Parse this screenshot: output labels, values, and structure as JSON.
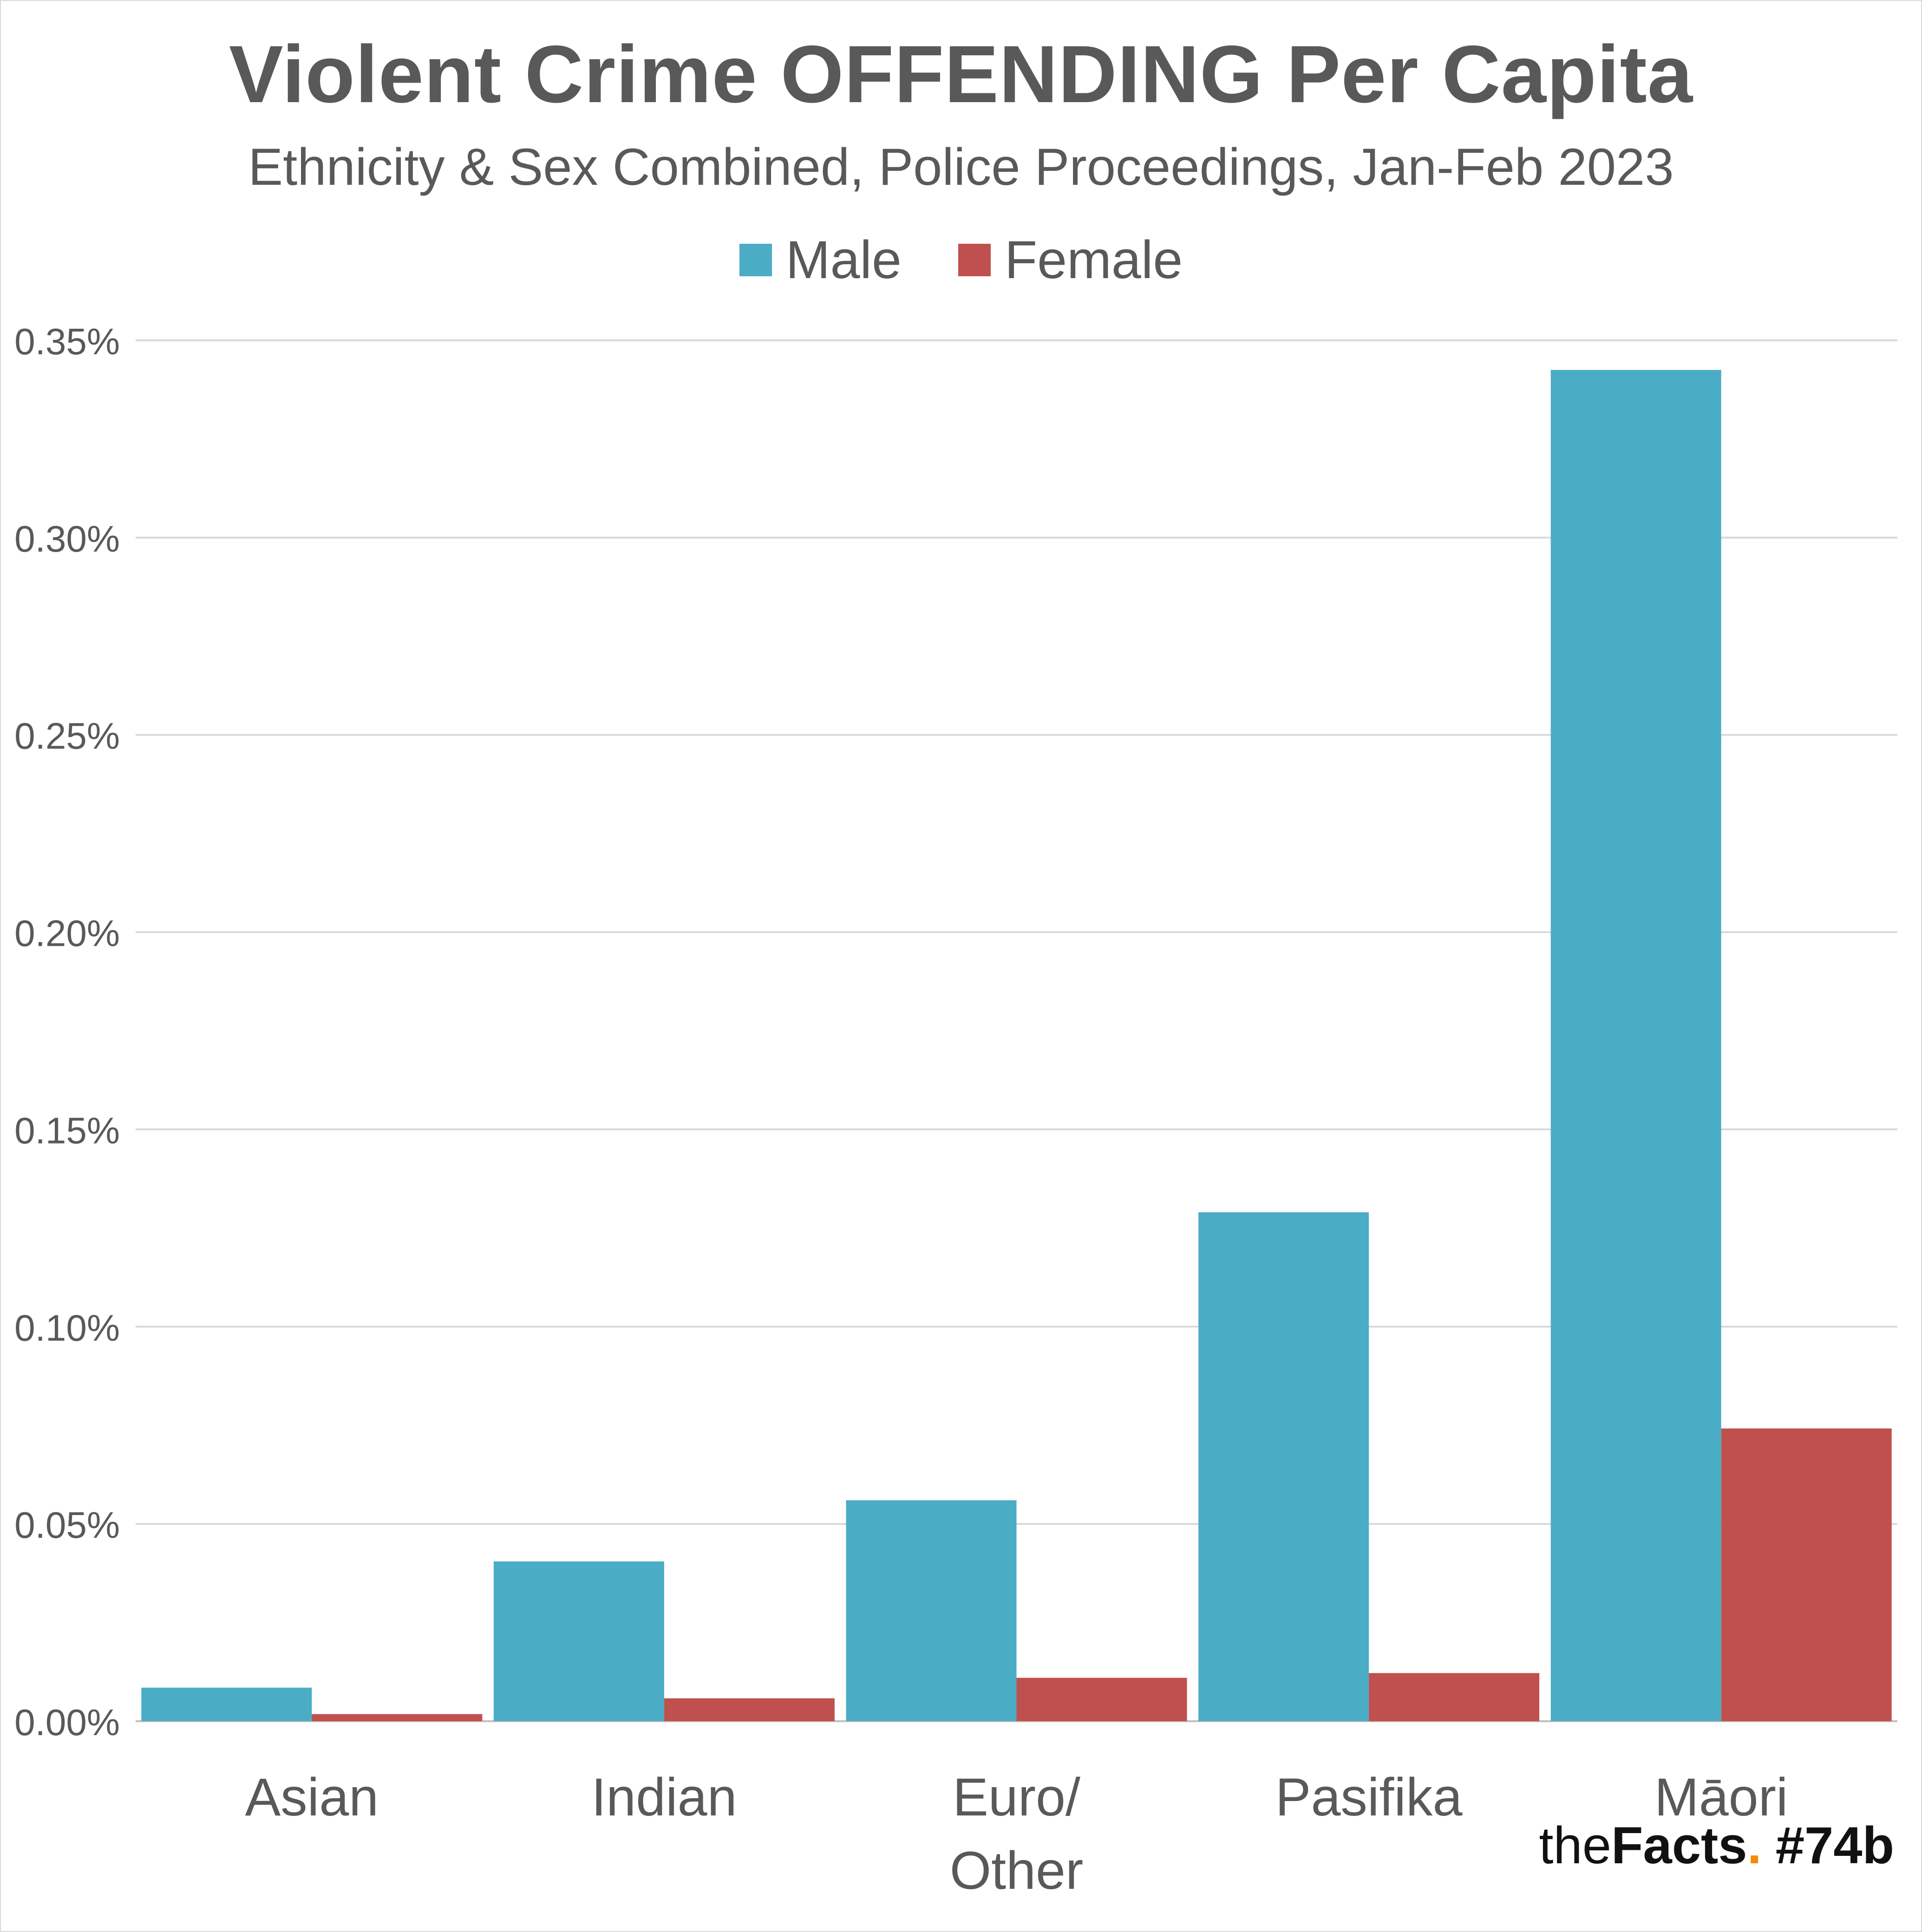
{
  "chart_data": {
    "type": "bar",
    "title": "Violent Crime OFFENDING Per Capita",
    "subtitle": "Ethnicity & Sex Combined, Police Proceedings, Jan-Feb 2023",
    "categories": [
      [
        "Asian"
      ],
      [
        "Indian"
      ],
      [
        "Euro/",
        "Other"
      ],
      [
        "Pasifika"
      ],
      [
        "Māori"
      ]
    ],
    "series": [
      {
        "name": "Male",
        "color": "#4bacc6",
        "values": [
          0.0085,
          0.0405,
          0.056,
          0.129,
          0.3425
        ]
      },
      {
        "name": "Female",
        "color": "#c0504d",
        "values": [
          0.0018,
          0.0058,
          0.011,
          0.0122,
          0.0742
        ]
      }
    ],
    "yticks": [
      "0.00%",
      "0.05%",
      "0.10%",
      "0.15%",
      "0.20%",
      "0.25%",
      "0.30%",
      "0.35%"
    ],
    "ylim": [
      0,
      0.35
    ],
    "grid": true,
    "legend": "top-center",
    "xlabel": "",
    "ylabel": ""
  },
  "branding": {
    "the": "the",
    "facts": "Facts",
    "dot": ".",
    "tag": "#74b"
  }
}
